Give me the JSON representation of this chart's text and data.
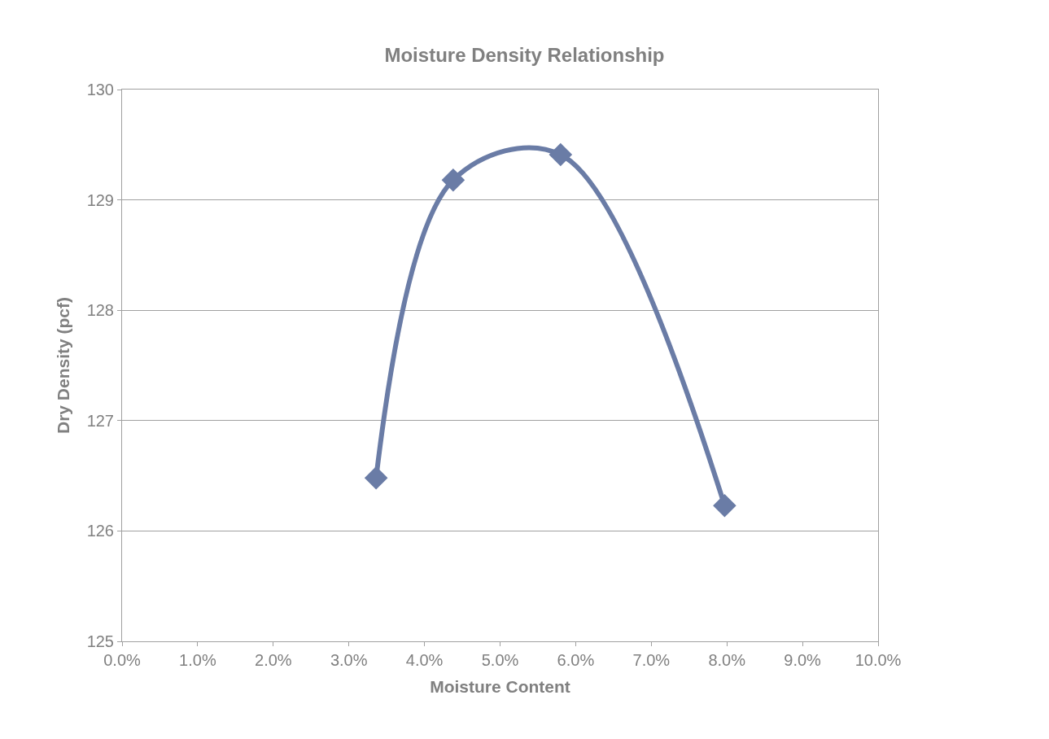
{
  "chart_data": {
    "type": "line",
    "title": "Moisture Density Relationship",
    "xlabel": "Moisture Content",
    "ylabel": "Dry Density (pcf)",
    "x": [
      3.36,
      4.38,
      5.8,
      7.97
    ],
    "series": [
      {
        "color": "#6a7ca6",
        "values": [
          126.48,
          129.18,
          129.41,
          126.23
        ]
      }
    ],
    "xlim": [
      0,
      10
    ],
    "xticks": [
      {
        "value": 0,
        "label": "0.0%"
      },
      {
        "value": 1,
        "label": "1.0%"
      },
      {
        "value": 2,
        "label": "2.0%"
      },
      {
        "value": 3,
        "label": "3.0%"
      },
      {
        "value": 4,
        "label": "4.0%"
      },
      {
        "value": 5,
        "label": "5.0%"
      },
      {
        "value": 6,
        "label": "6.0%"
      },
      {
        "value": 7,
        "label": "7.0%"
      },
      {
        "value": 8,
        "label": "8.0%"
      },
      {
        "value": 9,
        "label": "9.0%"
      },
      {
        "value": 10,
        "label": "10.0%"
      }
    ],
    "ylim": [
      125,
      130
    ],
    "yticks": [
      125,
      126,
      127,
      128,
      129,
      130
    ],
    "grid": "y",
    "marker": "diamond",
    "line_style": "solid",
    "legend": false
  }
}
